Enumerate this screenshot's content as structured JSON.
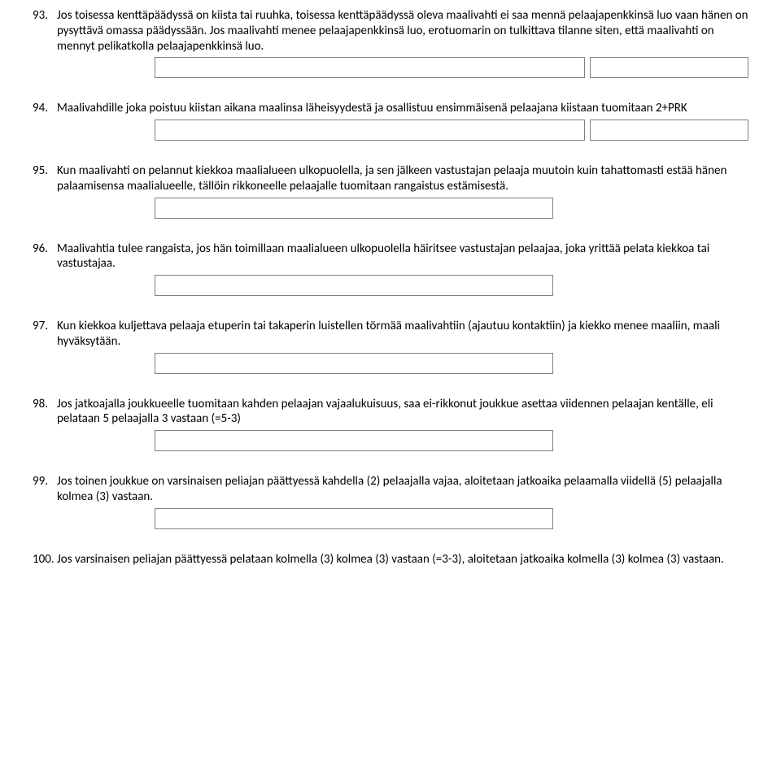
{
  "questions": [
    {
      "num": "93.",
      "text": "Jos toisessa kenttäpäädyssä on kiista tai ruuhka, toisessa kenttäpäädyssä oleva maalivahti ei saa mennä pelaajapenkkinsä luo vaan hänen on pysyttävä omassa päädyssään. Jos maalivahti menee pelaajapenkkinsä luo, erotuomarin on tulkittava tilanne siten, että maalivahti on mennyt pelikatkolla pelaajapenkkinsä luo.",
      "boxes": "two"
    },
    {
      "num": "94.",
      "text": "Maalivahdille joka poistuu kiistan aikana maalinsa läheisyydestä ja osallistuu ensimmäisenä pelaajana kiistaan tuomitaan 2+PRK",
      "boxes": "two"
    },
    {
      "num": "95.",
      "text": "Kun maalivahti on pelannut kiekkoa maalialueen ulkopuolella, ja sen jälkeen vastustajan pelaaja muutoin kuin tahattomasti estää hänen palaamisensa maalialueelle, tällöin rikkoneelle pelaajalle tuomitaan rangaistus estämisestä.",
      "boxes": "one"
    },
    {
      "num": "96.",
      "text": "Maalivahtia tulee rangaista, jos hän toimillaan maalialueen ulkopuolella häiritsee vastustajan pelaajaa, joka yrittää pelata kiekkoa tai vastustajaa.",
      "boxes": "one"
    },
    {
      "num": "97.",
      "text": "Kun kiekkoa kuljettava pelaaja etuperin tai takaperin luistellen törmää maalivahtiin (ajautuu kontaktiin) ja kiekko menee maaliin, maali hyväksytään.",
      "boxes": "one"
    },
    {
      "num": "98.",
      "text": "Jos jatkoajalla joukkueelle tuomitaan kahden pelaajan vajaalukuisuus, saa ei-rikkonut joukkue asettaa viidennen pelaajan kentälle, eli pelataan 5 pelaajalla 3 vastaan (=5-3)",
      "boxes": "one"
    },
    {
      "num": "99.",
      "text": "Jos toinen joukkue on varsinaisen peliajan päättyessä kahdella (2) pelaajalla vajaa, aloitetaan jatkoaika pelaamalla viidellä (5) pelaajalla kolmea (3) vastaan.",
      "boxes": "one"
    },
    {
      "num": "100.",
      "text": "Jos varsinaisen peliajan päättyessä pelataan kolmella (3) kolmea (3) vastaan (=3-3), aloitetaan jatkoaika kolmella (3) kolmea (3) vastaan.",
      "boxes": "none"
    }
  ]
}
